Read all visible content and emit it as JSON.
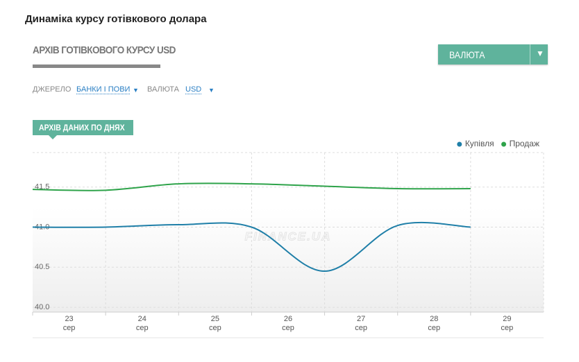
{
  "page_title": "Динаміка курсу готівкового долара",
  "section_title": "АРХІВ ГОТІВКОВОГО КУРСУ USD",
  "currency_button": "ВАЛЮТА",
  "filters": {
    "source_label": "ДЖЕРЕЛО",
    "source_value": "БАНКИ І ПОВИ",
    "currency_label": "ВАЛЮТА",
    "currency_value": "USD"
  },
  "tab": "АРХІВ ДАНИХ ПО ДНЯХ",
  "chart_data": {
    "type": "line",
    "watermark": "FINANCE.UA",
    "categories": [
      "23",
      "24",
      "25",
      "26",
      "27",
      "28",
      "29"
    ],
    "category_months": [
      "сер",
      "сер",
      "сер",
      "сер",
      "сер",
      "сер",
      "сер"
    ],
    "series": [
      {
        "name": "Купівля",
        "color": "#1f7fa8",
        "values": [
          41.0,
          41.0,
          41.03,
          41.0,
          40.45,
          41.02,
          41.0
        ]
      },
      {
        "name": "Продаж",
        "color": "#2ea34a",
        "values": [
          41.47,
          41.46,
          41.54,
          41.54,
          41.51,
          41.48,
          41.48
        ]
      }
    ],
    "ylim": [
      39.94,
      41.93
    ],
    "yticks": [
      {
        "value": 40.0,
        "label": "40.0"
      },
      40.5,
      {
        "value": 41.0,
        "label": "41.0"
      },
      41.5
    ],
    "grid": true,
    "legend": "top-right"
  }
}
